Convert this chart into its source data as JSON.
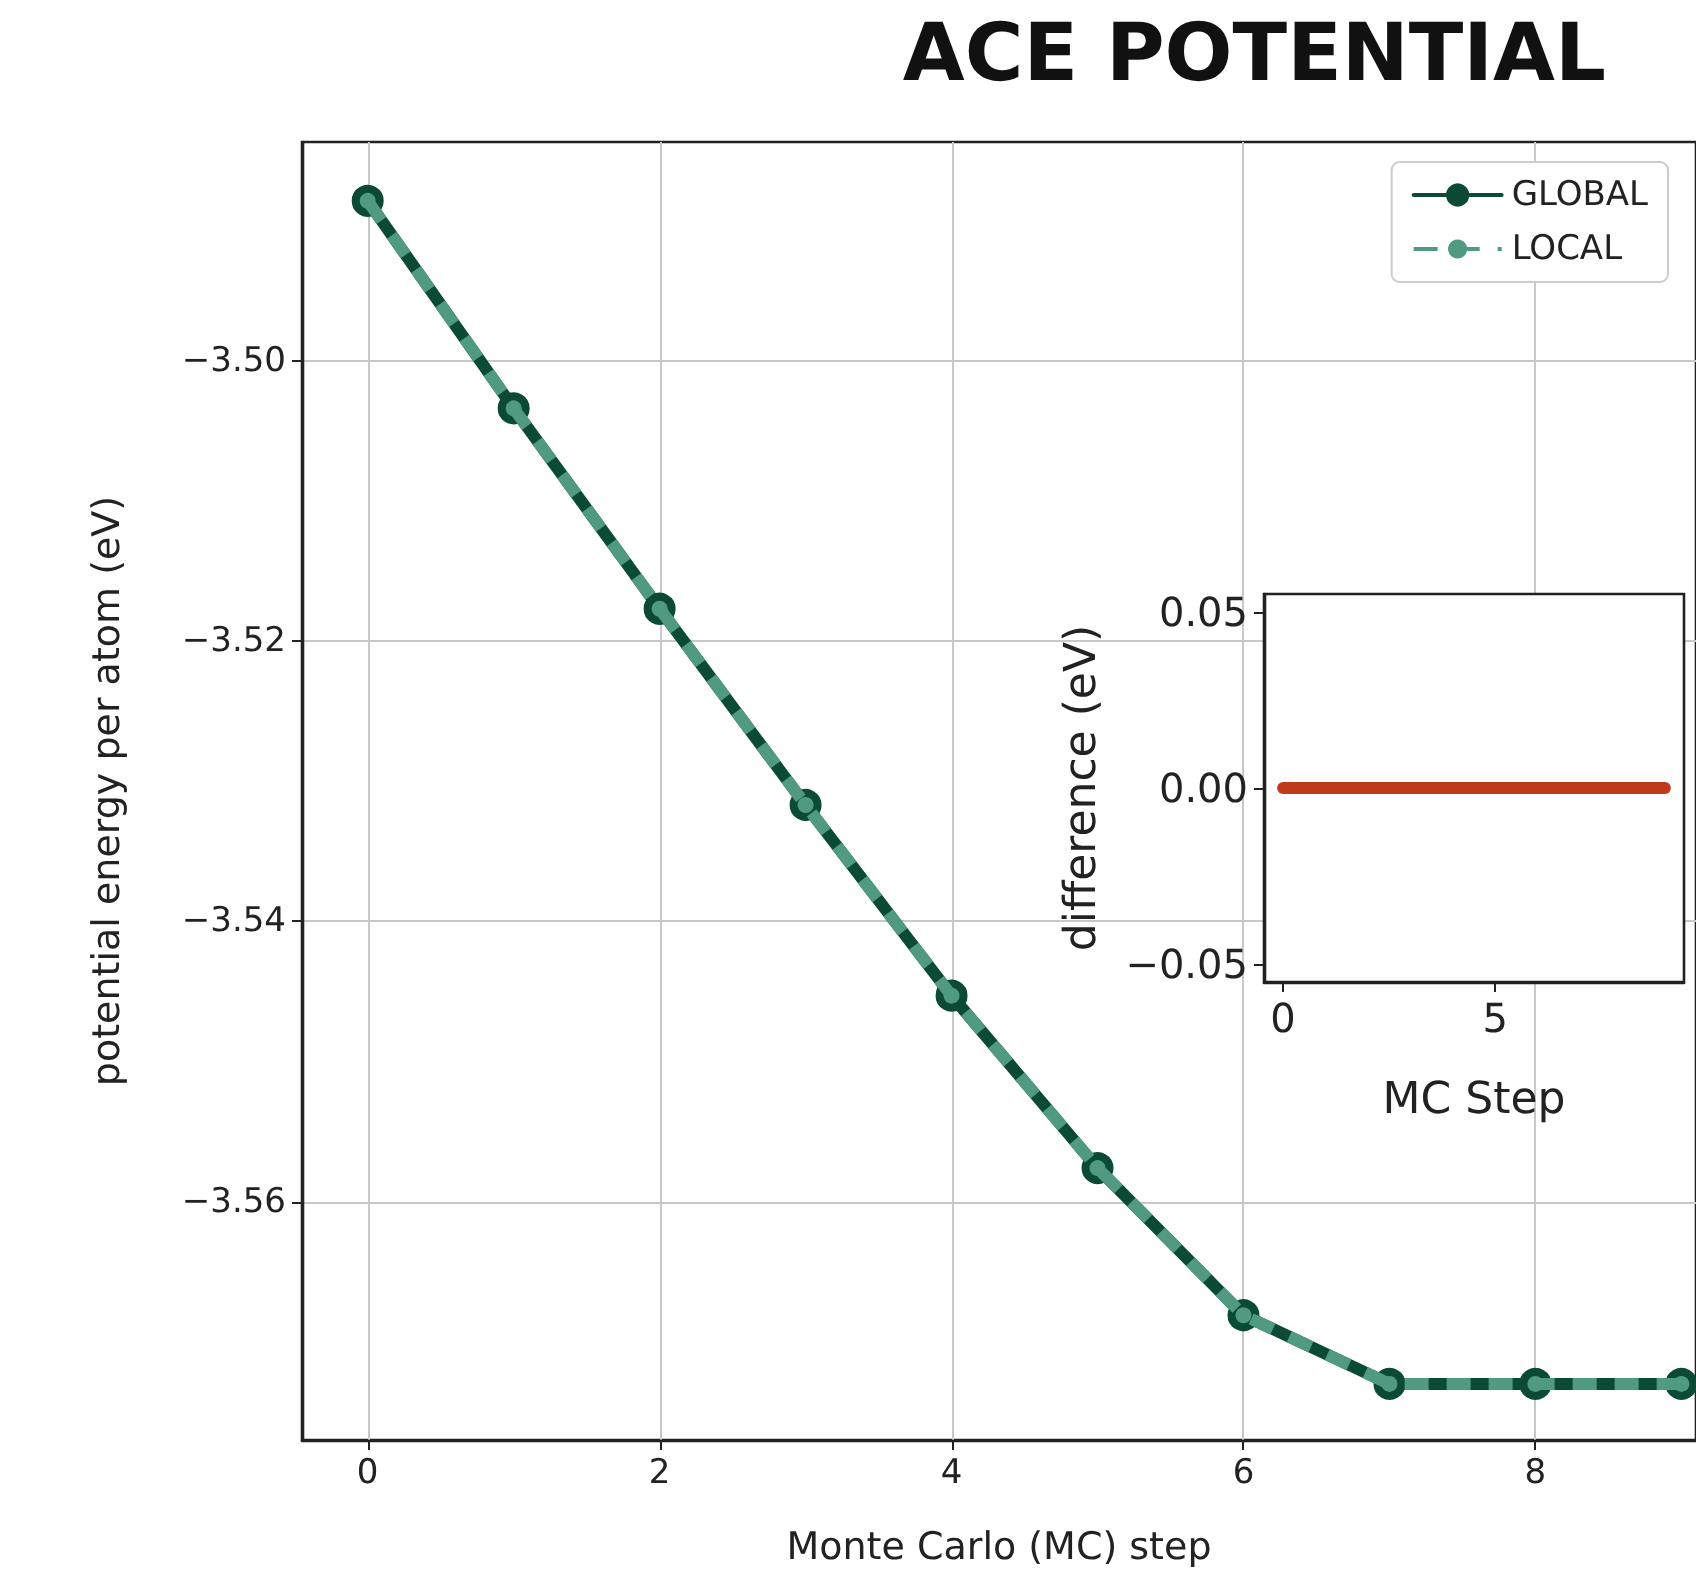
{
  "chart_data": [
    {
      "type": "line",
      "title": "ACE POTENTIAL",
      "xlabel": "Monte Carlo (MC) step",
      "ylabel": "potential energy per atom (eV)",
      "x": [
        0,
        1,
        2,
        3,
        4,
        5,
        6,
        7,
        8,
        9
      ],
      "series": [
        {
          "name": "GLOBAL",
          "color": "#0b4a35",
          "values": [
            -3.4886,
            -3.5034,
            -3.5177,
            -3.5317,
            -3.5453,
            -3.5576,
            -3.5681,
            -3.573,
            -3.573,
            -3.573
          ],
          "line_style": "solid",
          "marker": "circle"
        },
        {
          "name": "LOCAL",
          "color": "#4f9a80",
          "values": [
            -3.4886,
            -3.5034,
            -3.5177,
            -3.5317,
            -3.5453,
            -3.5576,
            -3.5681,
            -3.573,
            -3.573,
            -3.573
          ],
          "line_style": "dashed",
          "marker": "circle"
        }
      ],
      "xlim": [
        -0.45,
        9.1
      ],
      "xticks": [
        0,
        2,
        4,
        6,
        8
      ],
      "ylim": [
        -3.577,
        -3.4844
      ],
      "yticks": [
        {
          "value": -3.56,
          "label": "−3.56"
        },
        {
          "value": -3.54,
          "label": "−3.54"
        },
        {
          "value": -3.52,
          "label": "−3.52"
        },
        {
          "value": -3.5,
          "label": "−3.50"
        }
      ],
      "grid": true,
      "legend": "top right"
    },
    {
      "type": "line",
      "xlabel": "MC Step",
      "ylabel": "difference (eV)",
      "x": [
        0,
        1,
        2,
        3,
        4,
        5,
        6,
        7,
        8,
        9
      ],
      "series": [
        {
          "color": "#c0391b",
          "values": [
            0,
            0,
            0,
            0,
            0,
            0,
            0,
            0,
            0,
            0
          ]
        }
      ],
      "xlim": [
        -0.45,
        9.45
      ],
      "xticks": [
        0,
        5
      ],
      "ylim": [
        -0.055,
        0.055
      ],
      "yticks": [
        {
          "value": -0.05,
          "label": "−0.05"
        },
        {
          "value": 0,
          "label": "0.00"
        },
        {
          "value": 0.05,
          "label": "0.05"
        }
      ],
      "marker": "none",
      "grid": false
    }
  ]
}
